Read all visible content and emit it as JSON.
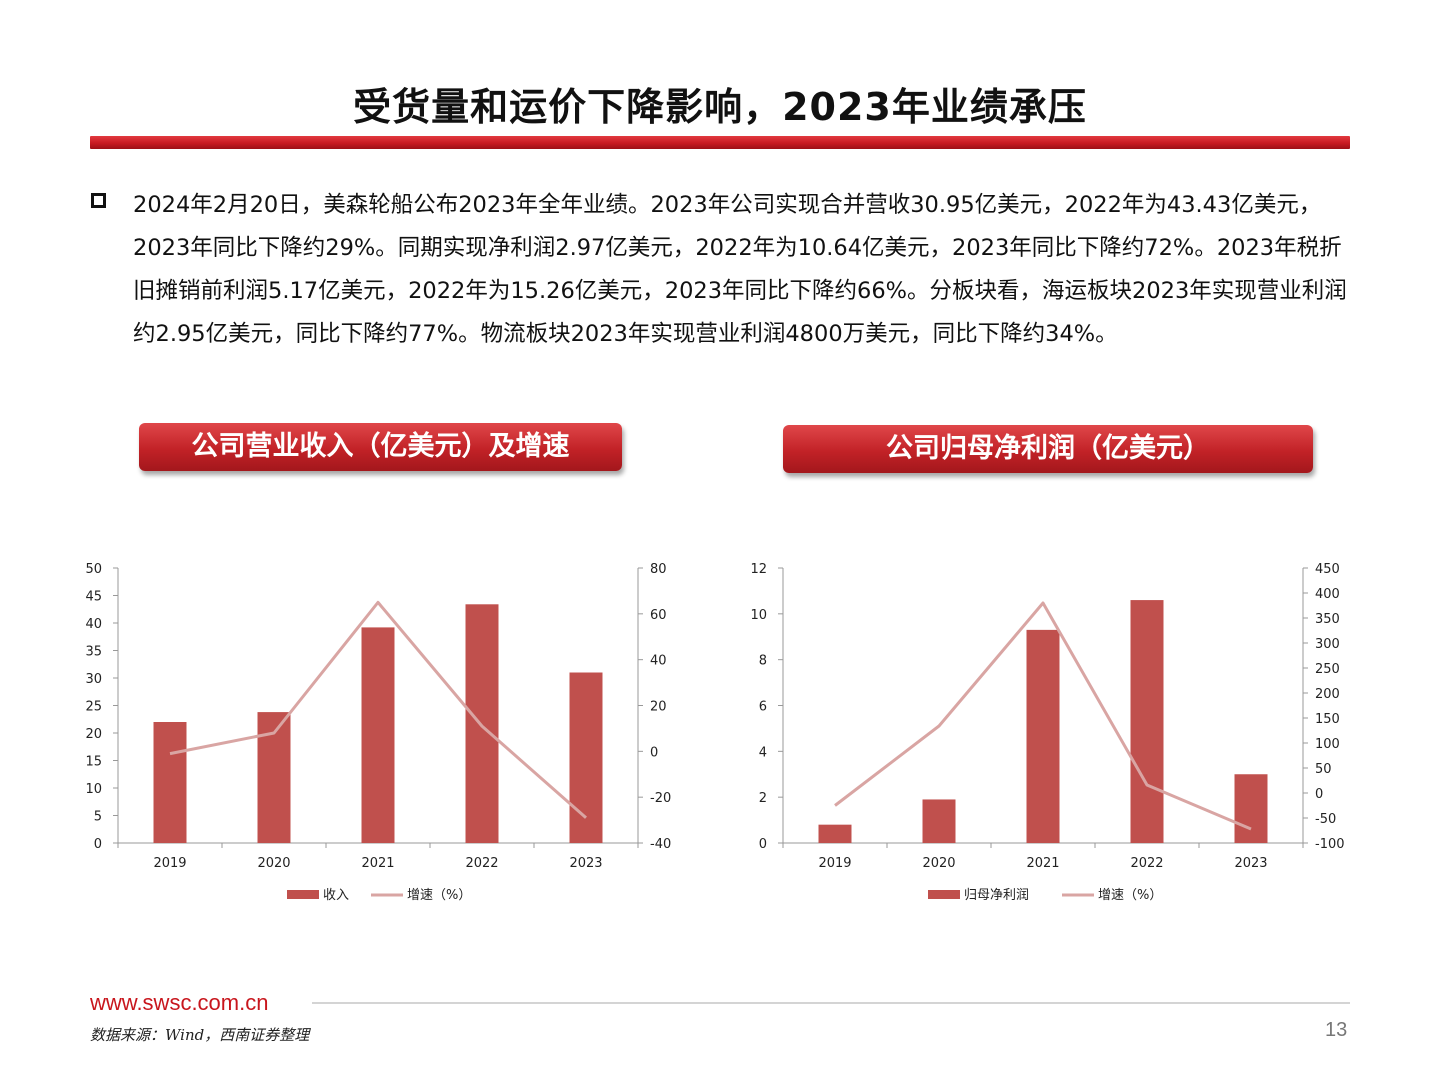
{
  "slide": {
    "title": "受货量和运价下降影响，2023年业绩承压",
    "summary": "2024年2月20日，美森轮船公布2023年全年业绩。2023年公司实现合并营收30.95亿美元，2022年为43.43亿美元，2023年同比下降约29%。同期实现净利润2.97亿美元，2022年为10.64亿美元，2023年同比下降约72%。2023年税折旧摊销前利润5.17亿美元，2022年为15.26亿美元，2023年同比下降约66%。分板块看，海运板块2023年实现营业利润约2.95亿美元，同比下降约77%。物流板块2023年实现营业利润4800万美元，同比下降约34%。",
    "bullet_icon": "hollow-square-bullet",
    "footer_url": "www.swsc.com.cn",
    "footer_source": "数据来源：Wind，西南证券整理",
    "page_number": "13"
  },
  "banners": {
    "revenue": "公司营业收入（亿美元）及增速",
    "net_profit": "公司归母净利润（亿美元）"
  },
  "colors": {
    "bar": "#c0504d",
    "line": "#d9a5a3",
    "accent": "#c8161d"
  },
  "chart_data": [
    {
      "type": "bar",
      "categories": [
        "2019",
        "2020",
        "2021",
        "2022",
        "2023"
      ],
      "series": [
        {
          "name": "收入",
          "type": "bar",
          "axis": "left",
          "values": [
            22.0,
            23.8,
            39.2,
            43.4,
            31.0
          ]
        },
        {
          "name": "增速（%）",
          "type": "line",
          "axis": "right",
          "values": [
            -1,
            8,
            65,
            11,
            -29
          ]
        }
      ],
      "ylim": [
        0,
        50
      ],
      "yticks": [
        "0",
        "5",
        "10",
        "15",
        "20",
        "25",
        "30",
        "35",
        "40",
        "45",
        "50"
      ],
      "y2lim": [
        -40,
        80
      ],
      "y2ticks": [
        "-40",
        "-20",
        "0",
        "20",
        "40",
        "60",
        "80"
      ],
      "legend": "bottom",
      "grid": false
    },
    {
      "type": "bar",
      "categories": [
        "2019",
        "2020",
        "2021",
        "2022",
        "2023"
      ],
      "series": [
        {
          "name": "归母净利润",
          "type": "bar",
          "axis": "left",
          "values": [
            0.8,
            1.9,
            9.3,
            10.6,
            3.0
          ]
        },
        {
          "name": "增速（%）",
          "type": "line",
          "axis": "right",
          "values": [
            -25,
            134,
            380,
            16,
            -72
          ]
        }
      ],
      "ylim": [
        0,
        12
      ],
      "yticks": [
        "0",
        "2",
        "4",
        "6",
        "8",
        "10",
        "12"
      ],
      "y2lim": [
        -100,
        450
      ],
      "y2ticks": [
        "-100",
        "-50",
        "0",
        "50",
        "100",
        "150",
        "200",
        "250",
        "300",
        "350",
        "400",
        "450"
      ],
      "legend": "bottom",
      "grid": false
    }
  ]
}
